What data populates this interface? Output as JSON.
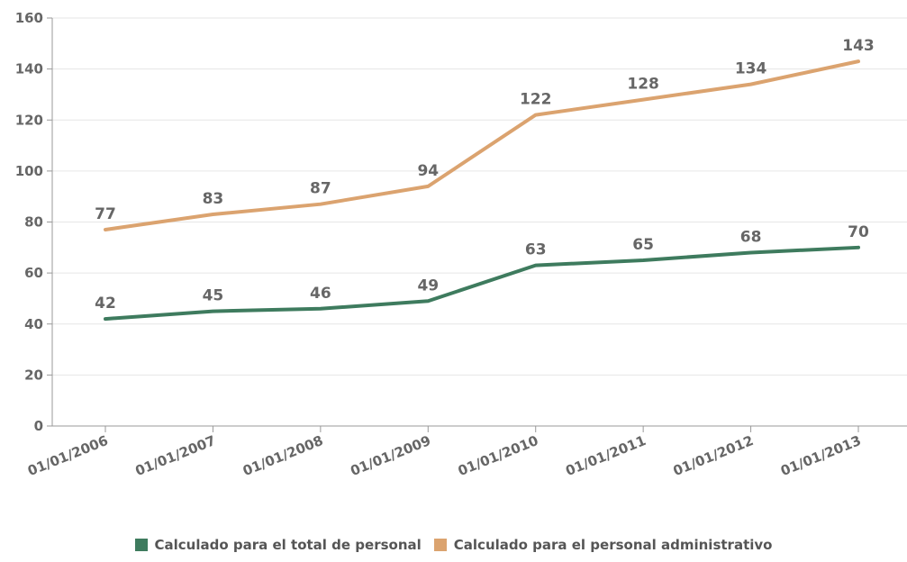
{
  "chart_data": {
    "type": "line",
    "categories": [
      "01/01/2006",
      "01/01/2007",
      "01/01/2008",
      "01/01/2009",
      "01/01/2010",
      "01/01/2011",
      "01/01/2012",
      "01/01/2013"
    ],
    "series": [
      {
        "name": "Calculado para el total de personal",
        "color": "#3e7b5e",
        "values": [
          42,
          45,
          46,
          49,
          63,
          65,
          68,
          70
        ]
      },
      {
        "name": "Calculado para el personal administrativo",
        "color": "#dba36f",
        "values": [
          77,
          83,
          87,
          94,
          122,
          128,
          134,
          143
        ]
      }
    ],
    "title": "",
    "xlabel": "",
    "ylabel": "",
    "ylim": [
      0,
      160
    ],
    "yticks": [
      0,
      20,
      40,
      60,
      80,
      100,
      120,
      140,
      160
    ],
    "grid": true,
    "legend": "bottom",
    "data_labels": true
  }
}
